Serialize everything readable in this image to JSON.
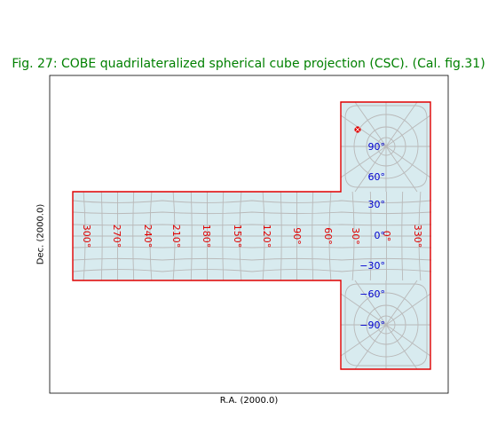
{
  "title": "Fig. 27: COBE quadrilateralized spherical cube projection (CSC). (Cal. fig.31)",
  "xlabel": "R.A. (2000.0)",
  "ylabel": "Dec. (2000.0)",
  "colors": {
    "title": "#008000",
    "boundary": "#e00000",
    "fill": "#d8ebef",
    "grid": "#b9b9b9",
    "ra_labels": "#e00000",
    "dec_labels": "#0000d0",
    "marker": "#e00000"
  },
  "ra_labels": [
    "300°",
    "270°",
    "240°",
    "210°",
    "180°",
    "150°",
    "120°",
    "90°",
    "60°",
    "30°",
    "0°",
    "330°"
  ],
  "dec_labels": [
    "90°",
    "60°",
    "30°",
    "0°",
    "−30°",
    "−60°",
    "−90°"
  ]
}
